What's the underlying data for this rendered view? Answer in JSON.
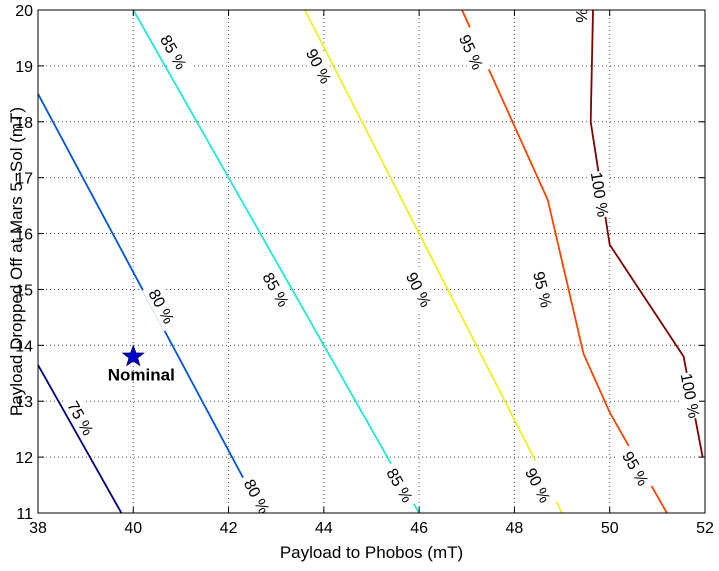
{
  "chart_data": {
    "type": "line",
    "xlabel": "Payload to Phobos (mT)",
    "ylabel": "Payload Dropped Off at Mars 5−Sol (mT)",
    "xlim": [
      38,
      52
    ],
    "ylim": [
      11,
      20
    ],
    "xticks": [
      "38",
      "40",
      "42",
      "44",
      "46",
      "48",
      "50",
      "52"
    ],
    "yticks": [
      "11",
      "12",
      "13",
      "14",
      "15",
      "16",
      "17",
      "18",
      "19",
      "20"
    ],
    "grid": true,
    "series": [
      {
        "level": "75 %",
        "color": "#00007f",
        "points": [
          [
            38,
            13.65
          ],
          [
            39.75,
            11
          ]
        ],
        "labels": [
          {
            "text": "75 %",
            "x": 38.9,
            "y": 12.7
          }
        ]
      },
      {
        "level": "80 %",
        "color": "#0055dd",
        "points": [
          [
            38,
            18.5
          ],
          [
            42.7,
            11
          ]
        ],
        "labels": [
          {
            "text": "80 %",
            "x": 40.6,
            "y": 14.7
          },
          {
            "text": "80 %",
            "x": 42.6,
            "y": 11.3
          }
        ]
      },
      {
        "level": "85 %",
        "color": "#22e8d8",
        "points": [
          [
            40.0,
            20
          ],
          [
            46.0,
            11
          ]
        ],
        "labels": [
          {
            "text": "85 %",
            "x": 40.85,
            "y": 19.25
          },
          {
            "text": "85 %",
            "x": 43.0,
            "y": 15.0
          },
          {
            "text": "85 %",
            "x": 45.6,
            "y": 11.5
          }
        ]
      },
      {
        "level": "90 %",
        "color": "#f0f020",
        "points": [
          [
            43.6,
            20
          ],
          [
            49.0,
            11
          ]
        ],
        "labels": [
          {
            "text": "90 %",
            "x": 43.9,
            "y": 19.0
          },
          {
            "text": "90 %",
            "x": 46.0,
            "y": 15.0
          },
          {
            "text": "90 %",
            "x": 48.5,
            "y": 11.5
          }
        ]
      },
      {
        "level": "95 %",
        "color": "#ff4400",
        "points": [
          [
            46.9,
            20
          ],
          [
            48.7,
            16.6
          ],
          [
            49.45,
            13.85
          ],
          [
            50.0,
            12.8
          ],
          [
            51.2,
            11.0
          ]
        ],
        "labels": [
          {
            "text": "95 %",
            "x": 47.1,
            "y": 19.25
          },
          {
            "text": "95 %",
            "x": 48.6,
            "y": 15.0
          },
          {
            "text": "95 %",
            "x": 50.55,
            "y": 11.8
          }
        ]
      },
      {
        "level": "100 %",
        "color": "#7f0000",
        "points": [
          [
            49.65,
            20
          ],
          [
            49.6,
            18.0
          ],
          [
            50.0,
            15.8
          ],
          [
            51.55,
            13.8
          ],
          [
            51.95,
            12.0
          ]
        ],
        "labels": [
          {
            "text": "100 %",
            "x": 49.8,
            "y": 16.7
          },
          {
            "text": "100 %",
            "x": 51.7,
            "y": 13.1
          },
          {
            "text": "%",
            "x": 49.4,
            "y": 19.9
          }
        ]
      }
    ],
    "annotations": [
      {
        "text": "Nominal",
        "x": 40.0,
        "y": 13.8,
        "marker": "star",
        "color": "#0000cc"
      }
    ]
  }
}
